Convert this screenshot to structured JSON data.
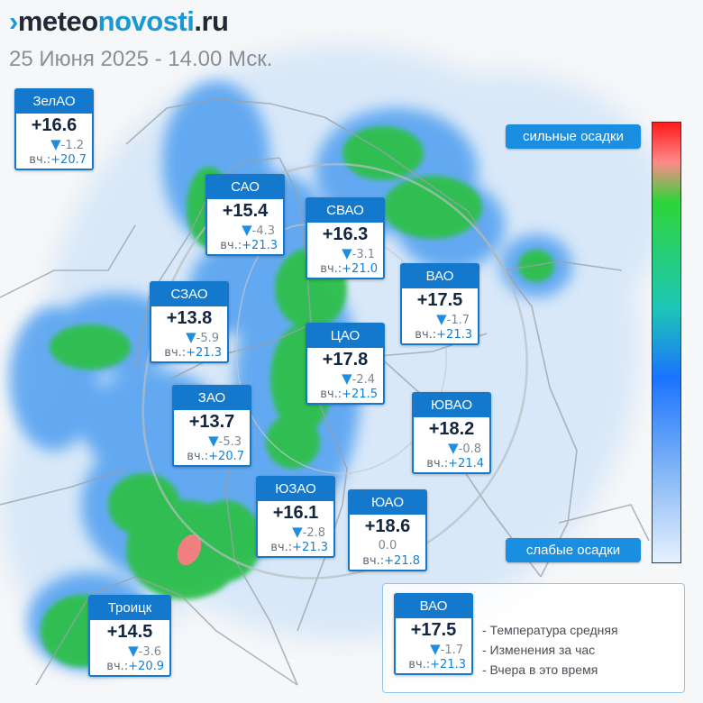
{
  "brand": {
    "mark": "›",
    "part1": "meteo",
    "part2": "novosti",
    "part3": ".ru"
  },
  "subtitle": "25 Июня 2025 - 14.00 Мск.",
  "scale": {
    "top_label": "сильные осадки",
    "bottom_label": "слабые осадки",
    "colors": [
      "#ff1a1a",
      "#ff8a8a",
      "#2fd43a",
      "#1ec7b5",
      "#1a73ff",
      "#86b8f5",
      "#e6f1fd"
    ]
  },
  "colors": {
    "card_accent": "#1478cc",
    "text_dark": "#12263f",
    "light_rain": "#2dc04b",
    "heavy_rain": "#f08080",
    "radar_blue": "#4f9ff0"
  },
  "yesterday_label": "вч.:",
  "districts": [
    {
      "name": "ЗелАО",
      "temp": "+16.6",
      "delta": "-1.2",
      "yesterday": "+20.7"
    },
    {
      "name": "САО",
      "temp": "+15.4",
      "delta": "-4.3",
      "yesterday": "+21.3"
    },
    {
      "name": "СВАО",
      "temp": "+16.3",
      "delta": "-3.1",
      "yesterday": "+21.0"
    },
    {
      "name": "ВАО",
      "temp": "+17.5",
      "delta": "-1.7",
      "yesterday": "+21.3"
    },
    {
      "name": "СЗАО",
      "temp": "+13.8",
      "delta": "-5.9",
      "yesterday": "+21.3"
    },
    {
      "name": "ЦАО",
      "temp": "+17.8",
      "delta": "-2.4",
      "yesterday": "+21.5"
    },
    {
      "name": "ЗАО",
      "temp": "+13.7",
      "delta": "-5.3",
      "yesterday": "+20.7"
    },
    {
      "name": "ЮВАО",
      "temp": "+18.2",
      "delta": "-0.8",
      "yesterday": "+21.4"
    },
    {
      "name": "ЮЗАО",
      "temp": "+16.1",
      "delta": "-2.8",
      "yesterday": "+21.3"
    },
    {
      "name": "ЮАО",
      "temp": "+18.6",
      "delta": "0.0",
      "yesterday": "+21.8"
    },
    {
      "name": "Троицк",
      "temp": "+14.5",
      "delta": "-3.6",
      "yesterday": "+20.9"
    }
  ],
  "legend": {
    "card": {
      "name": "ВАО",
      "temp": "+17.5",
      "delta": "-1.7",
      "yesterday": "+21.3"
    },
    "items": [
      "- Температура средняя",
      "- Изменения за час",
      "- Вчера в это время"
    ]
  }
}
